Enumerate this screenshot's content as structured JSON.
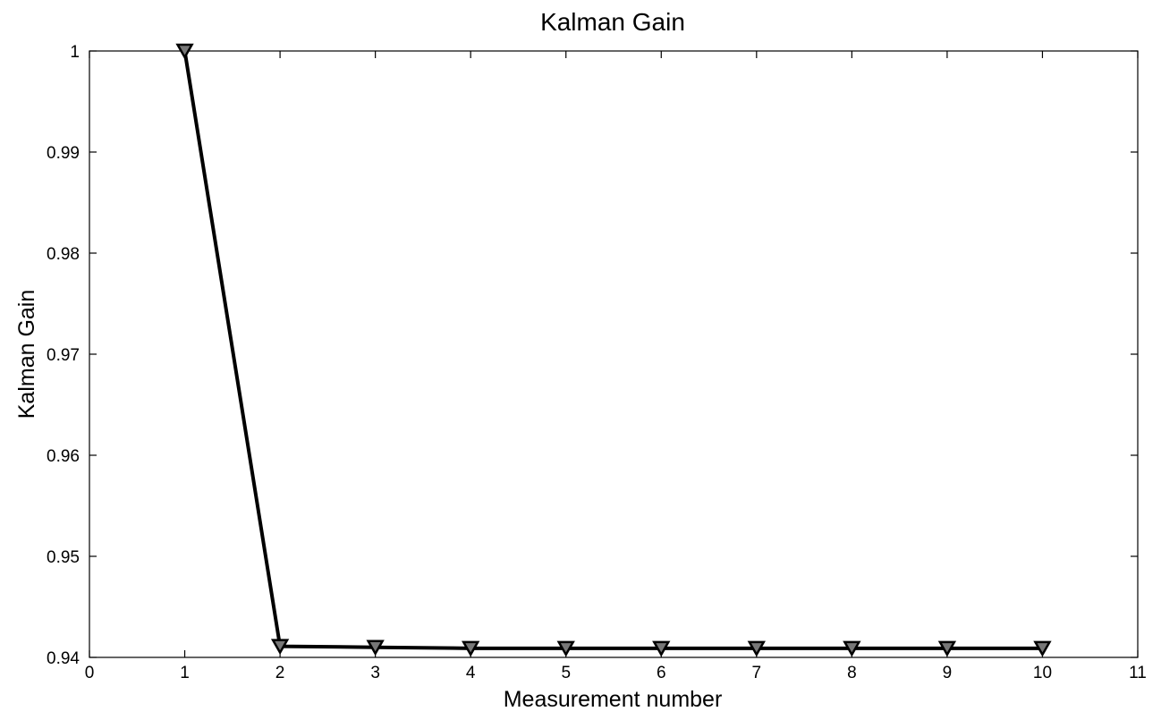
{
  "chart_data": {
    "type": "line",
    "title": "Kalman Gain",
    "xlabel": "Measurement number",
    "ylabel": "Kalman Gain",
    "xlim": [
      0,
      11
    ],
    "ylim": [
      0.94,
      1.0
    ],
    "xticks": [
      0,
      1,
      2,
      3,
      4,
      5,
      6,
      7,
      8,
      9,
      10,
      11
    ],
    "xtick_labels": [
      "0",
      "1",
      "2",
      "3",
      "4",
      "5",
      "6",
      "7",
      "8",
      "9",
      "10",
      "11"
    ],
    "yticks": [
      0.94,
      0.95,
      0.96,
      0.97,
      0.98,
      0.99,
      1.0
    ],
    "ytick_labels": [
      "0.94",
      "0.95",
      "0.96",
      "0.97",
      "0.98",
      "0.99",
      "1"
    ],
    "grid": false,
    "series": [
      {
        "x": [
          1,
          2,
          3,
          4,
          5,
          6,
          7,
          8,
          9,
          10
        ],
        "y": [
          1.0,
          0.9411,
          0.941,
          0.9409,
          0.9409,
          0.9409,
          0.9409,
          0.9409,
          0.9409,
          0.9409
        ],
        "color": "#000000",
        "marker": "down-triangle"
      }
    ]
  }
}
